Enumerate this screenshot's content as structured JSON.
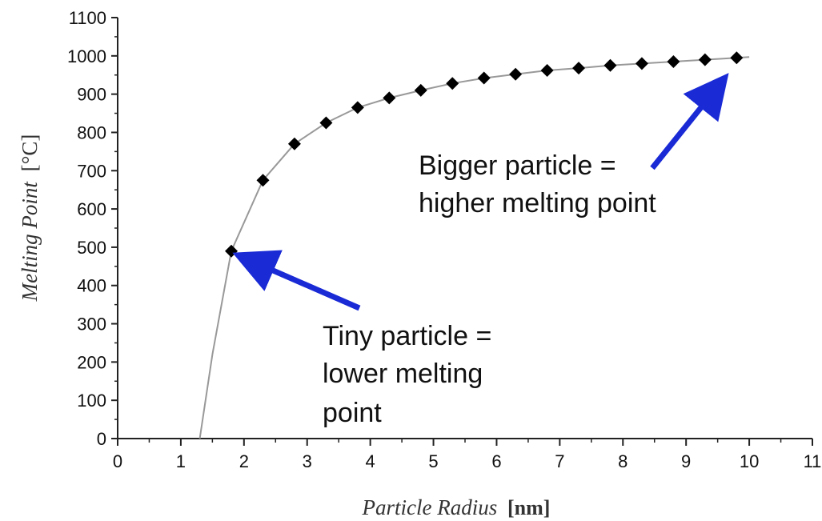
{
  "chart_data": {
    "type": "scatter",
    "title": "",
    "xlabel": "Particle Radius",
    "xlabel_unit": "[nm]",
    "ylabel": "Melting Point",
    "ylabel_unit": "[°C]",
    "xlim": [
      0,
      11
    ],
    "ylim": [
      0,
      1100
    ],
    "x_ticks": [
      "0",
      "1",
      "2",
      "3",
      "4",
      "5",
      "6",
      "7",
      "8",
      "9",
      "10",
      "11"
    ],
    "y_ticks": [
      "0",
      "100",
      "200",
      "300",
      "400",
      "500",
      "600",
      "700",
      "800",
      "900",
      "1000",
      "1100"
    ],
    "grid": false,
    "legend": "none",
    "series": [
      {
        "marker": "diamond",
        "color": "#000000",
        "x": [
          1.8,
          2.3,
          2.8,
          3.3,
          3.8,
          4.3,
          4.8,
          5.3,
          5.8,
          6.3,
          6.8,
          7.3,
          7.8,
          8.3,
          8.8,
          9.3,
          9.8
        ],
        "y": [
          490,
          675,
          770,
          825,
          865,
          890,
          910,
          928,
          942,
          952,
          962,
          968,
          975,
          980,
          985,
          990,
          995
        ]
      }
    ],
    "fit_curve": {
      "color": "#999999",
      "x": [
        1.3,
        1.5,
        1.8,
        2.3,
        2.8,
        3.3,
        3.8,
        4.3,
        4.8,
        5.3,
        5.8,
        6.3,
        6.8,
        7.3,
        7.8,
        8.3,
        8.8,
        9.3,
        9.8,
        10.0
      ],
      "y": [
        0,
        220,
        490,
        675,
        770,
        825,
        865,
        890,
        910,
        928,
        942,
        952,
        962,
        968,
        975,
        980,
        985,
        990,
        995,
        997
      ]
    },
    "annotations": [
      {
        "lines": [
          "Tiny particle =",
          "lower melting",
          "point"
        ],
        "arrow_color": "#1a2bd6",
        "points_to": [
          1.8,
          490
        ]
      },
      {
        "lines": [
          "Bigger particle =",
          "higher melting point"
        ],
        "arrow_color": "#1a2bd6",
        "points_to": [
          9.8,
          995
        ]
      }
    ]
  }
}
